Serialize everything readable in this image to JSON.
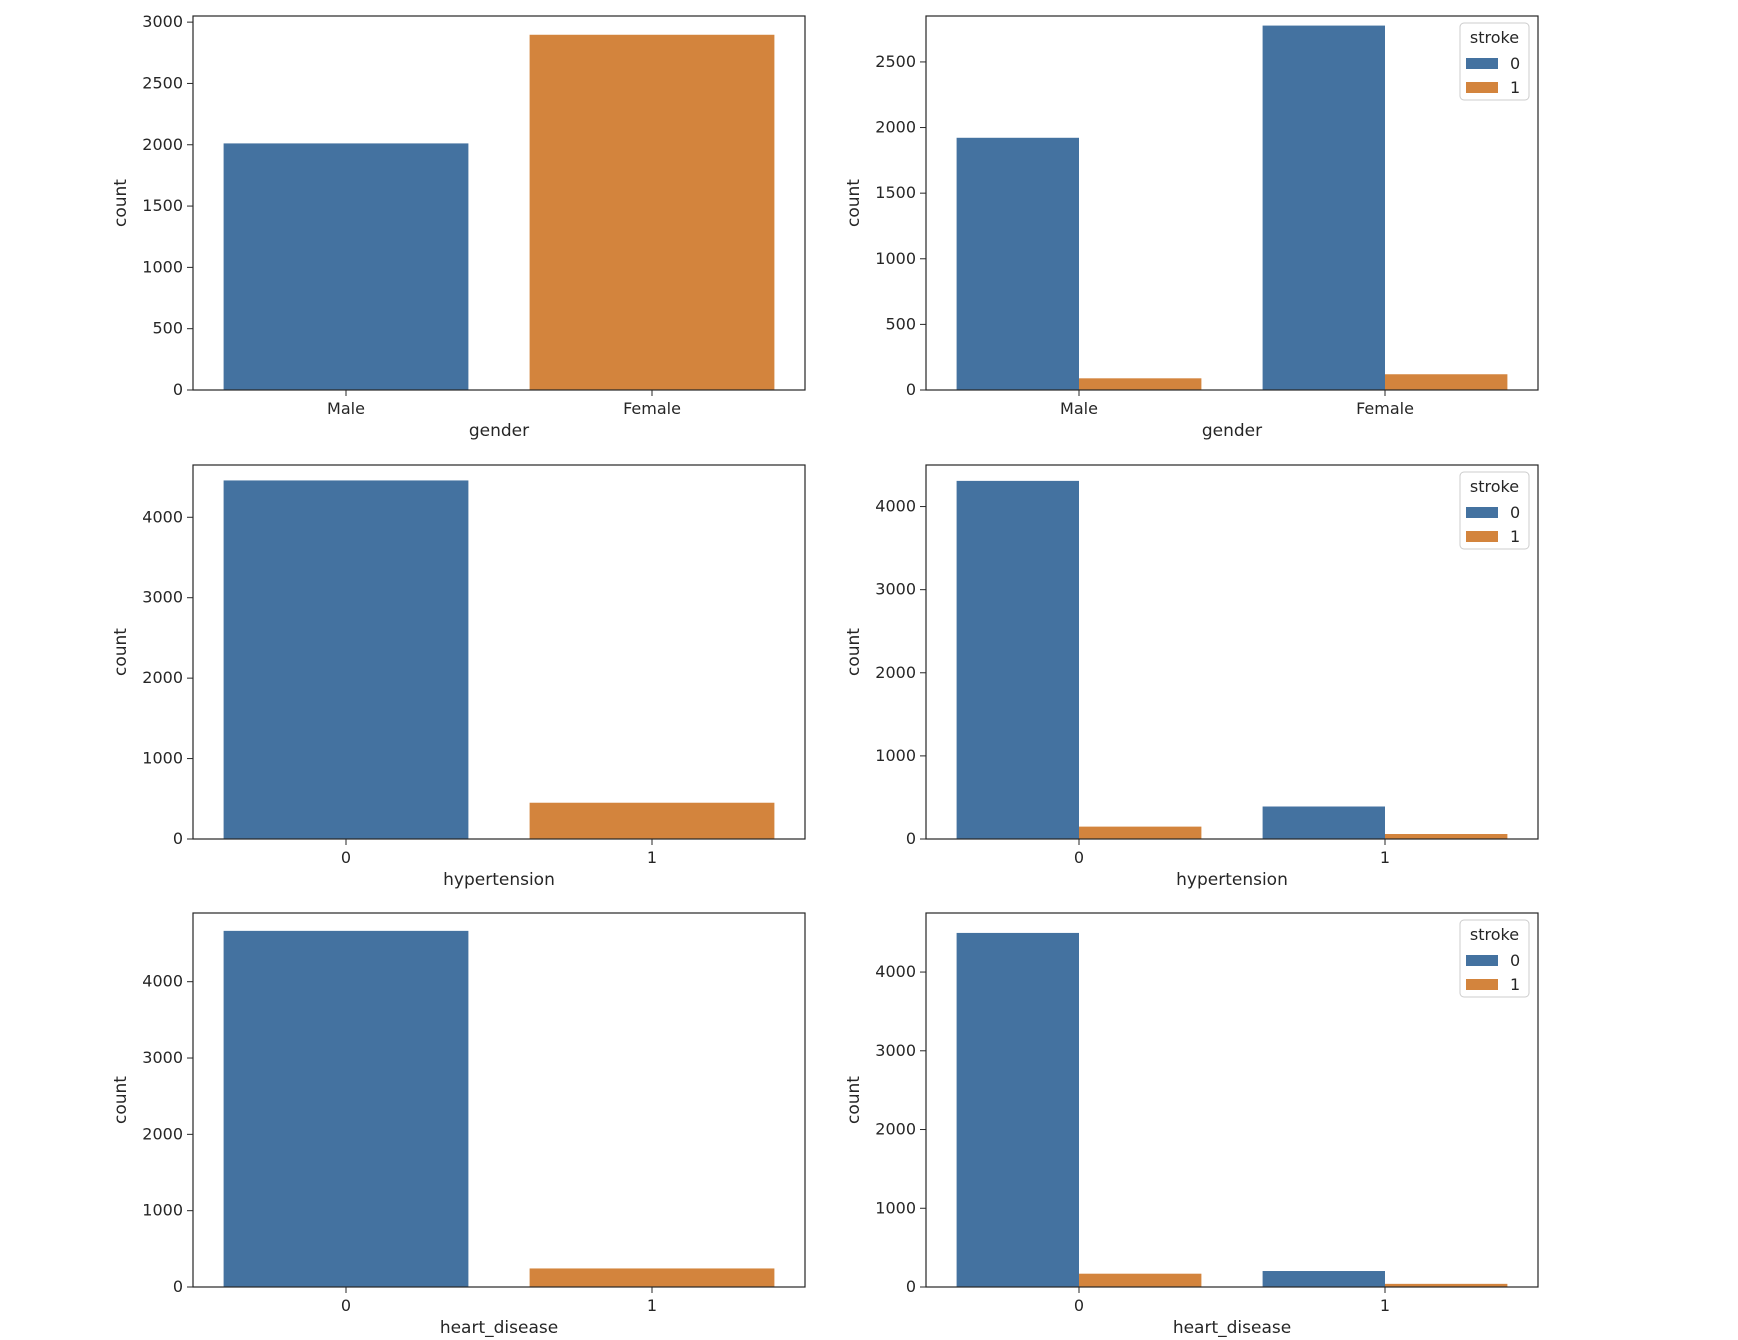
{
  "colors": {
    "c0": "#4472a0",
    "c1": "#d3843d"
  },
  "chart_data": [
    {
      "type": "bar",
      "xlabel": "gender",
      "ylabel": "count",
      "categories": [
        "Male",
        "Female"
      ],
      "ylim": [
        0,
        3050
      ],
      "yticks": [
        0,
        500,
        1000,
        1500,
        2000,
        2500,
        3000
      ],
      "values": [
        2011,
        2897
      ]
    },
    {
      "type": "bar",
      "xlabel": "gender",
      "ylabel": "count",
      "categories": [
        "Male",
        "Female"
      ],
      "ylim": [
        0,
        2850
      ],
      "yticks": [
        0,
        500,
        1000,
        1500,
        2000,
        2500
      ],
      "legend": {
        "title": "stroke",
        "position": "top-right"
      },
      "series": [
        {
          "name": "0",
          "values": [
            1922,
            2777
          ]
        },
        {
          "name": "1",
          "values": [
            89,
            120
          ]
        }
      ]
    },
    {
      "type": "bar",
      "xlabel": "hypertension",
      "ylabel": "count",
      "categories": [
        "0",
        "1"
      ],
      "ylim": [
        0,
        4650
      ],
      "yticks": [
        0,
        1000,
        2000,
        3000,
        4000
      ],
      "values": [
        4458,
        451
      ]
    },
    {
      "type": "bar",
      "xlabel": "hypertension",
      "ylabel": "count",
      "categories": [
        "0",
        "1"
      ],
      "ylim": [
        0,
        4500
      ],
      "yticks": [
        0,
        1000,
        2000,
        3000,
        4000
      ],
      "legend": {
        "title": "stroke",
        "position": "top-right"
      },
      "series": [
        {
          "name": "0",
          "values": [
            4309,
            391
          ]
        },
        {
          "name": "1",
          "values": [
            149,
            60
          ]
        }
      ]
    },
    {
      "type": "bar",
      "xlabel": "heart_disease",
      "ylabel": "count",
      "categories": [
        "0",
        "1"
      ],
      "ylim": [
        0,
        4900
      ],
      "yticks": [
        0,
        1000,
        2000,
        3000,
        4000
      ],
      "values": [
        4666,
        243
      ]
    },
    {
      "type": "bar",
      "xlabel": "heart_disease",
      "ylabel": "count",
      "categories": [
        "0",
        "1"
      ],
      "ylim": [
        0,
        4750
      ],
      "yticks": [
        0,
        1000,
        2000,
        3000,
        4000
      ],
      "legend": {
        "title": "stroke",
        "position": "top-right"
      },
      "series": [
        {
          "name": "0",
          "values": [
            4497,
            203
          ]
        },
        {
          "name": "1",
          "values": [
            169,
            40
          ]
        }
      ]
    }
  ]
}
